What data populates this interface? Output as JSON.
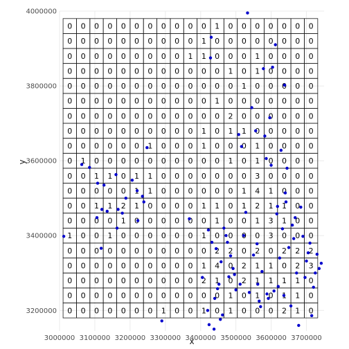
{
  "chart_data": {
    "type": "scatter",
    "title": "",
    "xlabel": "x",
    "ylabel": "y",
    "xlim": [
      3000000,
      3750000
    ],
    "ylim": [
      3145000,
      4000000
    ],
    "grid": true,
    "x_ticks": [
      {
        "value": 3000000,
        "label": "3000000"
      },
      {
        "value": 3100000,
        "label": "3100000"
      },
      {
        "value": 3200000,
        "label": "3200000"
      },
      {
        "value": 3300000,
        "label": "3300000"
      },
      {
        "value": 3400000,
        "label": "3400000"
      },
      {
        "value": 3500000,
        "label": "3500000"
      },
      {
        "value": 3600000,
        "label": "3600000"
      },
      {
        "value": 3700000,
        "label": "3700000"
      }
    ],
    "y_ticks": [
      {
        "value": 3200000,
        "label": "3200000"
      },
      {
        "value": 3400000,
        "label": "3400000"
      },
      {
        "value": 3600000,
        "label": "3600000"
      },
      {
        "value": 3800000,
        "label": "3800000"
      },
      {
        "value": 4000000,
        "label": "4000000"
      }
    ],
    "grid_cells": {
      "x_start": 3010000,
      "x_step": 38000,
      "y_top": 3980000,
      "y_step": 40000,
      "counts": [
        [
          0,
          0,
          0,
          0,
          0,
          0,
          0,
          0,
          0,
          0,
          0,
          1,
          0,
          0,
          0,
          0,
          0,
          0,
          0
        ],
        [
          0,
          0,
          0,
          0,
          0,
          0,
          0,
          0,
          0,
          0,
          1,
          0,
          0,
          0,
          0,
          0,
          0,
          0,
          0
        ],
        [
          0,
          0,
          0,
          0,
          0,
          0,
          0,
          0,
          0,
          1,
          1,
          0,
          0,
          0,
          1,
          0,
          0,
          0,
          0
        ],
        [
          0,
          0,
          0,
          0,
          0,
          0,
          0,
          0,
          0,
          0,
          0,
          0,
          1,
          0,
          1,
          0,
          0,
          0,
          0
        ],
        [
          0,
          0,
          0,
          0,
          0,
          0,
          0,
          0,
          0,
          0,
          0,
          0,
          0,
          1,
          0,
          0,
          0,
          0,
          0
        ],
        [
          0,
          0,
          0,
          0,
          0,
          0,
          0,
          0,
          0,
          0,
          0,
          1,
          0,
          0,
          0,
          0,
          0,
          0,
          0
        ],
        [
          0,
          0,
          0,
          0,
          0,
          0,
          0,
          0,
          0,
          0,
          0,
          0,
          2,
          0,
          0,
          0,
          0,
          0,
          0
        ],
        [
          0,
          0,
          0,
          0,
          0,
          0,
          0,
          0,
          0,
          0,
          1,
          0,
          1,
          1,
          0,
          0,
          0,
          0,
          0
        ],
        [
          0,
          0,
          0,
          0,
          0,
          0,
          1,
          0,
          0,
          0,
          1,
          0,
          0,
          0,
          1,
          0,
          0,
          0,
          0
        ],
        [
          0,
          1,
          0,
          0,
          0,
          0,
          0,
          0,
          0,
          0,
          0,
          0,
          1,
          0,
          1,
          0,
          0,
          0,
          0
        ],
        [
          0,
          0,
          1,
          1,
          0,
          1,
          1,
          0,
          0,
          0,
          0,
          0,
          0,
          0,
          3,
          0,
          0,
          0,
          0
        ],
        [
          0,
          0,
          0,
          0,
          0,
          1,
          1,
          0,
          0,
          0,
          0,
          0,
          0,
          1,
          4,
          1,
          0,
          0,
          0
        ],
        [
          0,
          0,
          1,
          1,
          2,
          1,
          0,
          0,
          0,
          0,
          1,
          1,
          0,
          1,
          2,
          1,
          1,
          0,
          0
        ],
        [
          0,
          0,
          0,
          0,
          1,
          0,
          0,
          0,
          0,
          0,
          0,
          1,
          0,
          0,
          1,
          3,
          1,
          0,
          0
        ],
        [
          1,
          0,
          0,
          1,
          0,
          0,
          0,
          0,
          0,
          0,
          1,
          0,
          0,
          0,
          0,
          3,
          0,
          0,
          0
        ],
        [
          0,
          0,
          0,
          0,
          0,
          0,
          0,
          0,
          0,
          0,
          0,
          2,
          2,
          0,
          2,
          0,
          2,
          2,
          2
        ],
        [
          0,
          0,
          0,
          0,
          0,
          0,
          0,
          0,
          0,
          0,
          1,
          4,
          0,
          2,
          1,
          1,
          0,
          2,
          3
        ],
        [
          0,
          0,
          0,
          0,
          0,
          0,
          0,
          0,
          0,
          0,
          2,
          1,
          0,
          2,
          1,
          1,
          1,
          1,
          0
        ],
        [
          0,
          0,
          0,
          0,
          0,
          0,
          0,
          0,
          0,
          0,
          0,
          0,
          1,
          0,
          1,
          0,
          1,
          1,
          0
        ],
        [
          0,
          0,
          0,
          0,
          0,
          0,
          0,
          1,
          0,
          0,
          1,
          0,
          1,
          0,
          0,
          0,
          2,
          1,
          0
        ]
      ]
    },
    "points": {
      "color": "#0000cd",
      "series": [
        {
          "x": [
            3012000,
            3063000,
            3085000,
            3106000,
            3108000,
            3118000,
            3120000,
            3126000,
            3135000,
            3160000,
            3163000,
            3166000,
            3178000,
            3188000,
            3206000,
            3220000,
            3222000,
            3235000,
            3239000,
            3248000,
            3290000,
            3368000,
            3405000,
            3420000,
            3422000,
            3424000,
            3428000,
            3430000,
            3432000,
            3438000,
            3440000,
            3444000,
            3448000,
            3452000,
            3456000,
            3458000,
            3462000,
            3466000,
            3472000,
            3476000,
            3480000,
            3485000,
            3492000,
            3496000,
            3500000,
            3508000,
            3512000,
            3516000,
            3522000,
            3528000,
            3533000,
            3538000,
            3545000,
            3550000,
            3556000,
            3560000,
            3562000,
            3566000,
            3570000,
            3574000,
            3578000,
            3582000,
            3586000,
            3588000,
            3592000,
            3596000,
            3600000,
            3604000,
            3608000,
            3612000,
            3616000,
            3618000,
            3620000,
            3624000,
            3628000,
            3632000,
            3636000,
            3638000,
            3640000,
            3642000,
            3645000,
            3650000,
            3656000,
            3660000,
            3664000,
            3668000,
            3672000,
            3678000,
            3684000,
            3690000,
            3696000,
            3700000,
            3705000,
            3710000,
            3715000,
            3720000,
            3725000,
            3730000,
            3736000,
            3742000
          ],
          "y": [
            3398000,
            3590000,
            3582000,
            3448000,
            3540000,
            3366000,
            3470000,
            3535000,
            3465000,
            3563000,
            3420000,
            3470000,
            3460000,
            3500000,
            3548000,
            3520000,
            3440000,
            3505000,
            3490000,
            3635000,
            3172000,
            3445000,
            3288000,
            3200000,
            3415000,
            3162000,
            3875000,
            3930000,
            3382000,
            3150000,
            3232000,
            3365000,
            3258000,
            3270000,
            3176000,
            3330000,
            3188000,
            3420000,
            3400000,
            3382000,
            3290000,
            3346000,
            3312000,
            3296000,
            3255000,
            3670000,
            3270000,
            3638000,
            3400000,
            3462000,
            3995000,
            3248000,
            3742000,
            3348000,
            3680000,
            3378000,
            3270000,
            3225000,
            3210000,
            3304000,
            3846000,
            3666000,
            3606000,
            3244000,
            3232000,
            3715000,
            3588000,
            3850000,
            3252000,
            3910000,
            3458000,
            3478000,
            3264000,
            3340000,
            3628000,
            3418000,
            3240000,
            3802000,
            3514000,
            3490000,
            3580000,
            3368000,
            3212000,
            3428000,
            3392000,
            3448000,
            3300000,
            3160000,
            3476000,
            3398000,
            3288000,
            3332000,
            3354000,
            3380000,
            3186000,
            3262000,
            3300000,
            3350000,
            3312000,
            3326000
          ]
        }
      ]
    }
  }
}
